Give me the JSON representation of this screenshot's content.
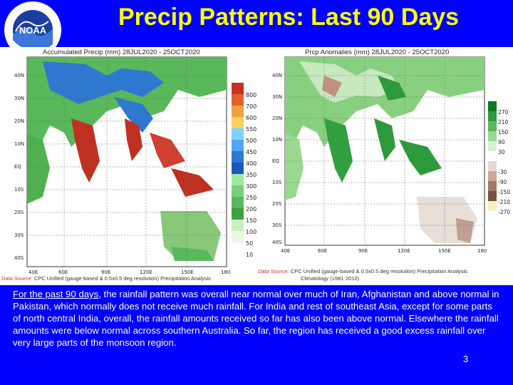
{
  "title": "Precip Patterns: Last 90 Days",
  "logo": {
    "text": "NOAA",
    "ring_text": "NATIONAL OCEANIC AND ATMOSPHERIC ADMINISTRATION",
    "icon": "noaa-logo-icon"
  },
  "left_map": {
    "title": "Accumulated Precip (mm) 28JUL2020 - 25OCT2020",
    "legend": [
      "800",
      "700",
      "600",
      "550",
      "500",
      "450",
      "400",
      "350",
      "300",
      "250",
      "200",
      "150",
      "100",
      "50",
      "10"
    ],
    "lon_labels": [
      "40E",
      "60E",
      "90E",
      "120E",
      "150E",
      "180"
    ],
    "lat_labels": [
      "40N",
      "30N",
      "20N",
      "10N",
      "EQ",
      "10S",
      "20S",
      "30S",
      "40S"
    ],
    "source_label": "Data Source:",
    "source_text": "CPC Unified (gauge-based & 0.5x0.5 deg resolution) Precipitation Analysis"
  },
  "right_map": {
    "title": "Prcp Anomalies (mm) 28JUL2020 - 25OCT2020",
    "legend": [
      "270",
      "210",
      "150",
      "90",
      "30",
      "-30",
      "-90",
      "-150",
      "-210",
      "-270"
    ],
    "lon_labels": [
      "40E",
      "60E",
      "90E",
      "120E",
      "150E",
      "180"
    ],
    "lat_labels": [
      "40N",
      "30N",
      "20N",
      "10N",
      "EQ",
      "10S",
      "20S",
      "30S",
      "40S"
    ],
    "source_label": "Data Source:",
    "source_text": "CPC Unified (gauge-based & 0.5x0.5 deg resolution) Precipitation Analysis",
    "climo_text": "Climatology (1981-2010)"
  },
  "text": {
    "underlined": "For the past 90 days,",
    "body": " the rainfall pattern was overall near normal over much of  Iran, Afghanistan and above normal in Pakistan, which normally does not receive much rainfall.  For India and rest of southeast Asia, except for some parts of north central India, overall, the rainfall amounts received so far has also been above normal. Elsewhere the rainfall amounts were below normal across southern Australia. So far, the region has received a good excess rainfall over very large parts of the monsoon region."
  },
  "page_number": "3"
}
